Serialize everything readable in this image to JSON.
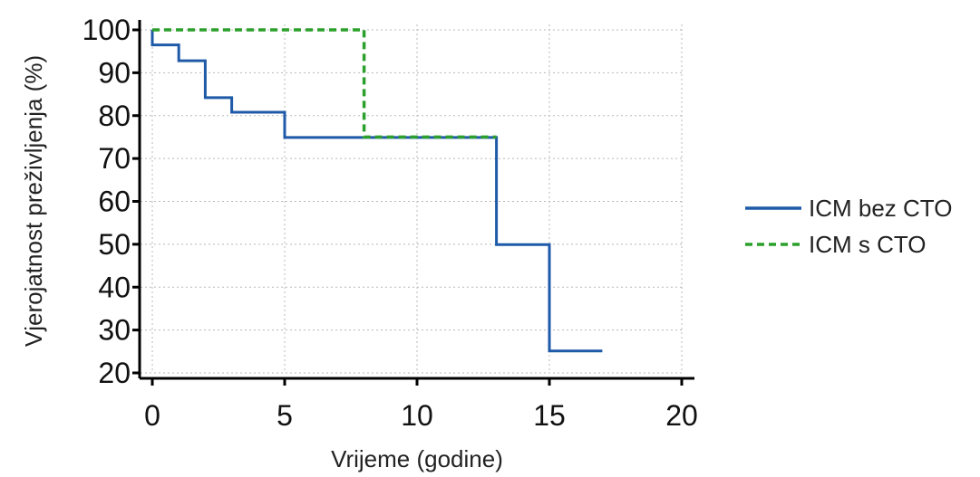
{
  "chart_data": {
    "type": "line",
    "title": "",
    "xlabel": "Vrijeme (godine)",
    "ylabel": "Vjerojatnost preživljenja (%)",
    "xlim": [
      0,
      20
    ],
    "ylim": [
      20,
      100
    ],
    "xticks": [
      0,
      5,
      10,
      15,
      20
    ],
    "yticks": [
      20,
      30,
      40,
      50,
      60,
      70,
      80,
      90,
      100
    ],
    "grid": true,
    "legend_position": "right",
    "series": [
      {
        "name": "ICM bez CTO",
        "color": "#1f5aa8",
        "style": "solid",
        "step": true,
        "x": [
          0,
          0,
          1,
          1,
          2,
          2,
          3,
          3,
          5,
          5,
          13,
          13,
          15,
          15,
          17
        ],
        "y": [
          100,
          96.5,
          96.5,
          92.8,
          92.8,
          84.2,
          84.2,
          80.8,
          80.8,
          74.9,
          74.9,
          49.9,
          49.9,
          25.1,
          25.1
        ]
      },
      {
        "name": "ICM s CTO",
        "color": "#2ca02c",
        "style": "dashed",
        "step": true,
        "x": [
          0,
          8,
          8,
          13
        ],
        "y": [
          100,
          100,
          75,
          75
        ]
      }
    ]
  }
}
